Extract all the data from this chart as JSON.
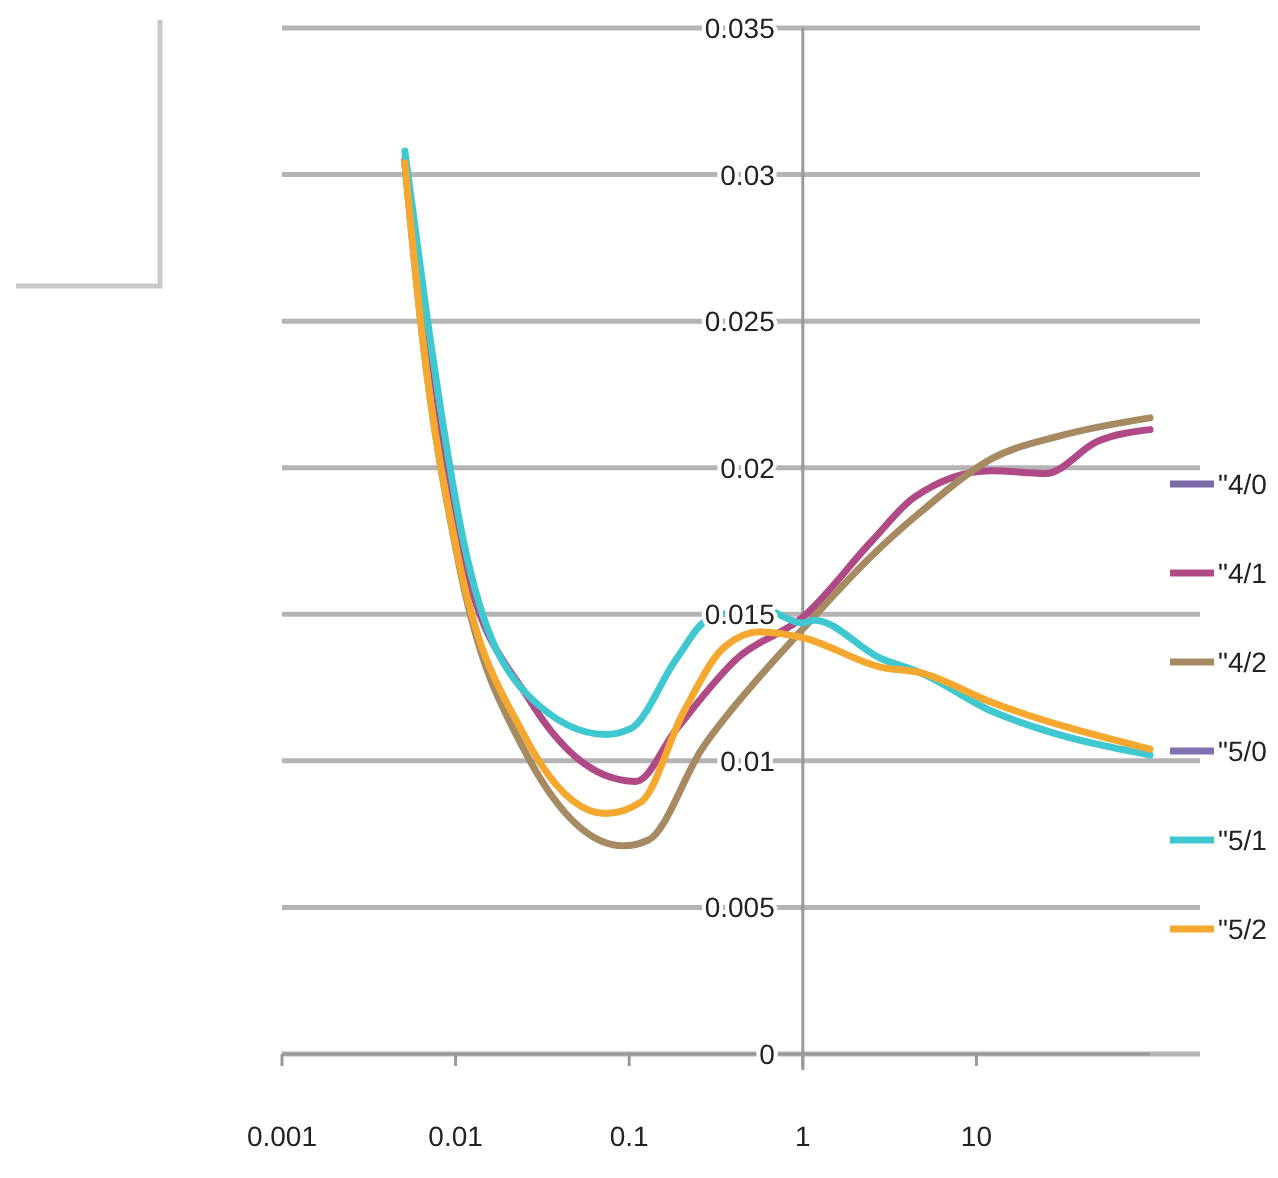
{
  "chart_data": {
    "type": "line",
    "log": "x",
    "grid": "y",
    "legend": "right",
    "xlim": [
      0.001,
      100
    ],
    "xticks": [
      0.001,
      0.01,
      0.1,
      1,
      10
    ],
    "ylim": [
      0,
      0.035
    ],
    "yticks": [
      0,
      0.005,
      0.01,
      0.015,
      0.02,
      0.025,
      0.03,
      0.035
    ],
    "series": [
      {
        "name": "\"4/0",
        "color": "#7d6aa8"
      },
      {
        "name": "\"4/1",
        "color": "#b04a86",
        "x": [
          0.0051,
          0.0064,
          0.0108,
          0.0265,
          0.0733,
          0.109,
          0.188,
          0.42,
          1.0,
          2.5,
          4.4,
          12.2,
          25,
          50,
          100
        ],
        "values": [
          0.0305,
          0.025,
          0.0172,
          0.0121,
          0.0095,
          0.0093,
          0.0111,
          0.0135,
          0.0149,
          0.0175,
          0.019,
          0.0199,
          0.0198,
          0.0209,
          0.0213
        ]
      },
      {
        "name": "\"4/2",
        "color": "#a68a62",
        "x": [
          0.0051,
          0.0064,
          0.0103,
          0.0247,
          0.0927,
          0.129,
          0.262,
          0.57,
          1.0,
          2.5,
          4.8,
          12.2,
          31,
          100
        ],
        "values": [
          0.0304,
          0.0246,
          0.0169,
          0.0104,
          0.0071,
          0.0073,
          0.0104,
          0.0129,
          0.0145,
          0.017,
          0.0185,
          0.0203,
          0.0211,
          0.0217
        ]
      },
      {
        "name": "\"5/0",
        "color": "#8070b0"
      },
      {
        "name": "\"5/1",
        "color": "#40c8d0",
        "x": [
          0.0051,
          0.0069,
          0.0111,
          0.0265,
          0.0733,
          0.102,
          0.188,
          0.281,
          0.57,
          1.0,
          1.16,
          2.8,
          4.8,
          12.2,
          23,
          100
        ],
        "values": [
          0.0308,
          0.025,
          0.0175,
          0.0122,
          0.0109,
          0.0111,
          0.0135,
          0.0148,
          0.0152,
          0.0147,
          0.0148,
          0.0135,
          0.013,
          0.0117,
          0.0111,
          0.0102
        ]
      },
      {
        "name": "\"5/2",
        "color": "#f5a830",
        "x": [
          0.0051,
          0.0064,
          0.0103,
          0.0247,
          0.0733,
          0.117,
          0.207,
          0.356,
          0.57,
          1.0,
          2.8,
          4.8,
          12.2,
          100
        ],
        "values": [
          0.0304,
          0.0246,
          0.017,
          0.0109,
          0.0082,
          0.0086,
          0.0117,
          0.0139,
          0.0144,
          0.0142,
          0.0132,
          0.013,
          0.012,
          0.0104
        ]
      }
    ]
  }
}
